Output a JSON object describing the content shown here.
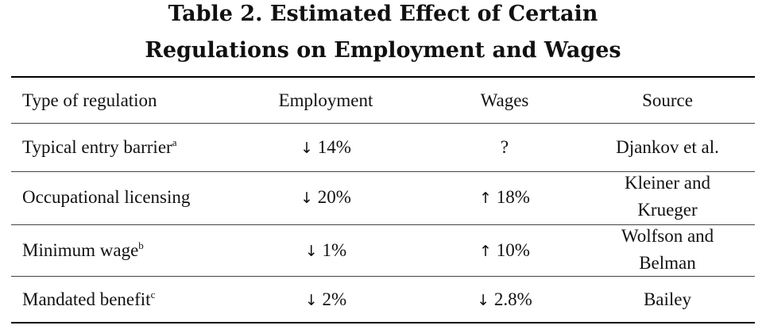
{
  "title_line1": "Table 2. Estimated Effect of Certain",
  "title_line2": "Regulations on Employment and Wages",
  "headers": [
    "Type of regulation",
    "Employment",
    "Wages",
    "Source"
  ],
  "rows": [
    {
      "regulation": "Typical entry barrier",
      "note": "a",
      "employment": {
        "arrow": "↓",
        "value": "14%"
      },
      "wages": {
        "arrow": "",
        "value": "?"
      },
      "source_lines": [
        "Djankov et al."
      ]
    },
    {
      "regulation": "Occupational licensing",
      "note": "",
      "employment": {
        "arrow": "↓",
        "value": "20%"
      },
      "wages": {
        "arrow": "↑",
        "value": " 18%"
      },
      "source_lines": [
        "Kleiner and",
        "Krueger"
      ]
    },
    {
      "regulation": "Minimum wage",
      "note": "b",
      "employment": {
        "arrow": "↓",
        "value": "1%"
      },
      "wages": {
        "arrow": "↑",
        "value": "10%"
      },
      "source_lines": [
        "Wolfson and",
        "Belman"
      ]
    },
    {
      "regulation": "Mandated benefit",
      "note": "c",
      "employment": {
        "arrow": "↓",
        "value": "2%"
      },
      "wages": {
        "arrow": "↓",
        "value": "2.8%"
      },
      "source_lines": [
        "Bailey"
      ]
    }
  ]
}
